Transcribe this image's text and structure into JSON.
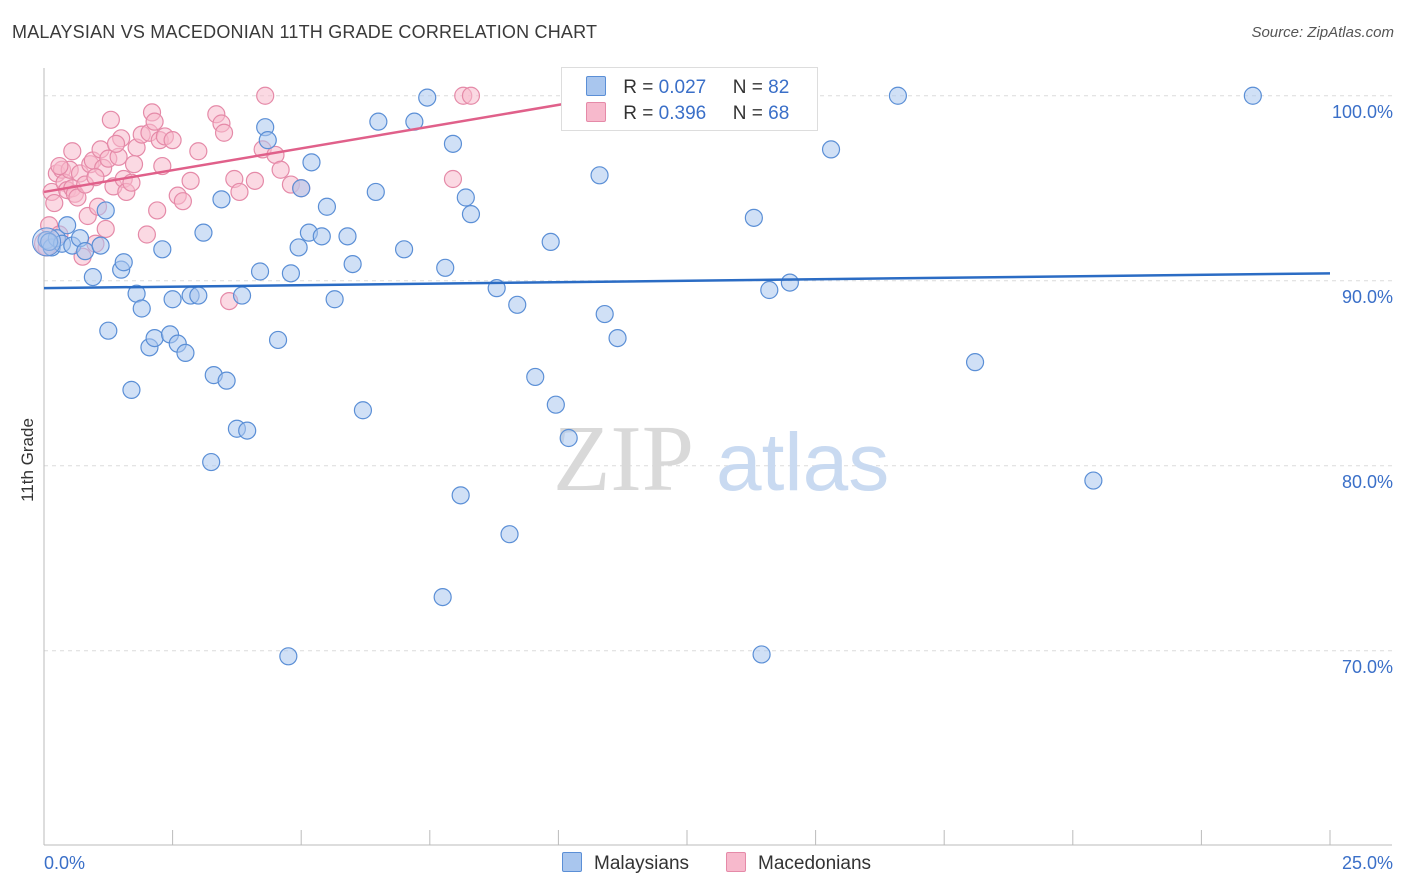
{
  "title": "MALAYSIAN VS MACEDONIAN 11TH GRADE CORRELATION CHART",
  "source": "Source: ZipAtlas.com",
  "colors": {
    "blue_fill": "#a9c6ee",
    "blue_stroke": "#5b8fd6",
    "blue_line": "#2b6cc4",
    "pink_fill": "#f7b9cc",
    "pink_stroke": "#e58aa8",
    "pink_line": "#e0608a",
    "axis_text": "#3a6fc8",
    "grid": "#dcdcdc"
  },
  "legend": {
    "rows": [
      {
        "r_label": "R =",
        "r_value": "0.027",
        "n_label": "N =",
        "n_value": "82"
      },
      {
        "r_label": "R =",
        "r_value": "0.396",
        "n_label": "N =",
        "n_value": "68"
      }
    ]
  },
  "bottom_legend": {
    "series1": "Malaysians",
    "series2": "Macedonians"
  },
  "watermark": {
    "part1": "ZIP",
    "part2": "atlas"
  },
  "chart_data": {
    "type": "scatter",
    "title": "MALAYSIAN VS MACEDONIAN 11TH GRADE CORRELATION CHART",
    "xlabel": "",
    "ylabel": "11th Grade",
    "xlim": [
      0,
      25
    ],
    "ylim": [
      59.5,
      101.5
    ],
    "x_tick_labels": [
      "0.0%",
      "25.0%"
    ],
    "y_ticks": [
      100,
      90,
      80,
      70
    ],
    "y_tick_labels": [
      "100.0%",
      "90.0%",
      "80.0%",
      "70.0%"
    ],
    "series": [
      {
        "name": "Malaysians",
        "r": 0.027,
        "n": 82,
        "trend": {
          "x": [
            0,
            25
          ],
          "y": [
            89.6,
            90.4
          ]
        },
        "points": [
          [
            0.05,
            92.2
          ],
          [
            0.15,
            91.8
          ],
          [
            0.25,
            92.3
          ],
          [
            0.35,
            92.0
          ],
          [
            0.45,
            93.0
          ],
          [
            0.55,
            91.9
          ],
          [
            0.7,
            92.3
          ],
          [
            0.8,
            91.6
          ],
          [
            0.95,
            90.2
          ],
          [
            1.1,
            91.9
          ],
          [
            1.2,
            93.8
          ],
          [
            1.5,
            90.6
          ],
          [
            1.55,
            91.0
          ],
          [
            1.25,
            87.3
          ],
          [
            1.7,
            84.1
          ],
          [
            1.8,
            89.3
          ],
          [
            1.9,
            88.5
          ],
          [
            2.05,
            86.4
          ],
          [
            2.15,
            86.9
          ],
          [
            2.3,
            91.7
          ],
          [
            2.45,
            87.1
          ],
          [
            2.5,
            89.0
          ],
          [
            2.6,
            86.6
          ],
          [
            2.75,
            86.1
          ],
          [
            2.85,
            89.2
          ],
          [
            3.0,
            89.2
          ],
          [
            3.1,
            92.6
          ],
          [
            3.25,
            80.2
          ],
          [
            3.3,
            84.9
          ],
          [
            3.45,
            94.4
          ],
          [
            3.55,
            84.6
          ],
          [
            3.75,
            82.0
          ],
          [
            3.85,
            89.2
          ],
          [
            3.95,
            81.9
          ],
          [
            4.2,
            90.5
          ],
          [
            4.3,
            98.3
          ],
          [
            4.35,
            97.6
          ],
          [
            4.55,
            86.8
          ],
          [
            4.75,
            69.7
          ],
          [
            4.8,
            90.4
          ],
          [
            4.95,
            91.8
          ],
          [
            5.0,
            95.0
          ],
          [
            5.15,
            92.6
          ],
          [
            5.2,
            96.4
          ],
          [
            5.4,
            92.4
          ],
          [
            5.5,
            94.0
          ],
          [
            5.65,
            89.0
          ],
          [
            5.9,
            92.4
          ],
          [
            6.0,
            90.9
          ],
          [
            6.2,
            83.0
          ],
          [
            6.45,
            94.8
          ],
          [
            6.5,
            98.6
          ],
          [
            7.0,
            91.7
          ],
          [
            7.2,
            98.6
          ],
          [
            7.45,
            99.9
          ],
          [
            7.75,
            72.9
          ],
          [
            7.8,
            90.7
          ],
          [
            7.95,
            97.4
          ],
          [
            8.1,
            78.4
          ],
          [
            8.2,
            94.5
          ],
          [
            8.3,
            93.6
          ],
          [
            8.8,
            89.6
          ],
          [
            9.05,
            76.3
          ],
          [
            9.2,
            88.7
          ],
          [
            9.55,
            84.8
          ],
          [
            9.85,
            92.1
          ],
          [
            9.95,
            83.3
          ],
          [
            10.2,
            81.5
          ],
          [
            10.8,
            95.7
          ],
          [
            10.9,
            88.2
          ],
          [
            11.15,
            86.9
          ],
          [
            11.5,
            99.9
          ],
          [
            13.8,
            93.4
          ],
          [
            13.95,
            69.8
          ],
          [
            14.1,
            89.5
          ],
          [
            14.5,
            89.9
          ],
          [
            15.3,
            97.1
          ],
          [
            16.6,
            100.0
          ],
          [
            18.1,
            85.6
          ],
          [
            20.4,
            79.2
          ],
          [
            23.5,
            100.0
          ],
          [
            0.1,
            92.1
          ]
        ]
      },
      {
        "name": "Macedonians",
        "r": 0.396,
        "n": 68,
        "trend": {
          "x": [
            0,
            10.2
          ],
          "y": [
            94.8,
            99.6
          ]
        },
        "points": [
          [
            0.05,
            91.8
          ],
          [
            0.1,
            93.0
          ],
          [
            0.15,
            94.8
          ],
          [
            0.2,
            94.2
          ],
          [
            0.25,
            95.8
          ],
          [
            0.3,
            92.5
          ],
          [
            0.35,
            96.0
          ],
          [
            0.4,
            95.3
          ],
          [
            0.45,
            94.9
          ],
          [
            0.5,
            96.0
          ],
          [
            0.55,
            95.0
          ],
          [
            0.6,
            94.7
          ],
          [
            0.65,
            94.5
          ],
          [
            0.7,
            95.8
          ],
          [
            0.75,
            91.3
          ],
          [
            0.8,
            95.2
          ],
          [
            0.85,
            93.5
          ],
          [
            0.9,
            96.3
          ],
          [
            0.95,
            96.5
          ],
          [
            1.0,
            92.0
          ],
          [
            1.05,
            94.0
          ],
          [
            1.1,
            97.1
          ],
          [
            1.15,
            96.1
          ],
          [
            1.2,
            92.8
          ],
          [
            1.25,
            96.6
          ],
          [
            1.3,
            98.7
          ],
          [
            1.35,
            95.1
          ],
          [
            1.45,
            96.7
          ],
          [
            1.5,
            97.7
          ],
          [
            1.55,
            95.5
          ],
          [
            1.6,
            94.8
          ],
          [
            1.7,
            95.3
          ],
          [
            1.8,
            97.2
          ],
          [
            1.9,
            97.9
          ],
          [
            2.0,
            92.5
          ],
          [
            2.05,
            98.0
          ],
          [
            2.1,
            99.1
          ],
          [
            2.15,
            98.6
          ],
          [
            2.2,
            93.8
          ],
          [
            2.25,
            97.6
          ],
          [
            2.35,
            97.8
          ],
          [
            2.5,
            97.6
          ],
          [
            2.6,
            94.6
          ],
          [
            2.7,
            94.3
          ],
          [
            2.85,
            95.4
          ],
          [
            3.0,
            97.0
          ],
          [
            3.35,
            99.0
          ],
          [
            3.45,
            98.5
          ],
          [
            3.5,
            98.0
          ],
          [
            3.6,
            88.9
          ],
          [
            3.7,
            95.5
          ],
          [
            3.8,
            94.8
          ],
          [
            4.1,
            95.4
          ],
          [
            4.25,
            97.1
          ],
          [
            4.3,
            100.0
          ],
          [
            4.5,
            96.8
          ],
          [
            4.6,
            96.0
          ],
          [
            4.8,
            95.2
          ],
          [
            5.0,
            95.0
          ],
          [
            7.95,
            95.5
          ],
          [
            8.15,
            100.0
          ],
          [
            8.3,
            100.0
          ],
          [
            0.3,
            96.2
          ],
          [
            0.55,
            97.0
          ],
          [
            1.0,
            95.6
          ],
          [
            1.4,
            97.4
          ],
          [
            1.75,
            96.3
          ],
          [
            2.3,
            96.2
          ]
        ]
      }
    ]
  }
}
